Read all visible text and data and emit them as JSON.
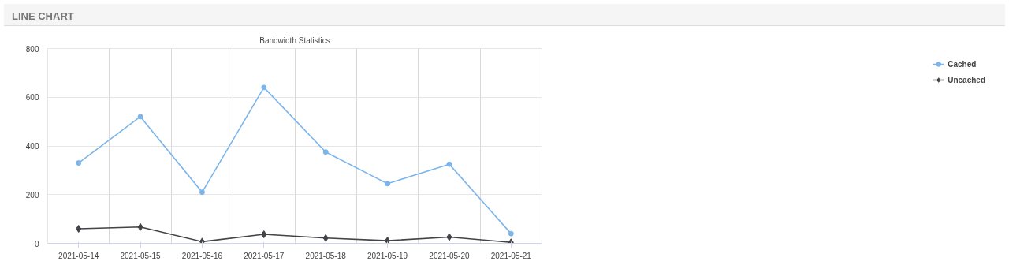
{
  "chart_data": {
    "type": "line",
    "title": "Bandwidth Statistics",
    "annotations": [
      "LINE CHART"
    ],
    "categories": [
      "2021-05-14",
      "2021-05-15",
      "2021-05-16",
      "2021-05-17",
      "2021-05-18",
      "2021-05-19",
      "2021-05-20",
      "2021-05-21"
    ],
    "series": [
      {
        "name": "Cached",
        "color": "#7cb5ec",
        "marker": "circle",
        "values": [
          330,
          520,
          210,
          640,
          375,
          245,
          325,
          40
        ]
      },
      {
        "name": "Uncached",
        "color": "#434348",
        "marker": "diamond",
        "values": [
          60,
          67,
          7,
          37,
          22,
          11,
          26,
          4
        ]
      }
    ],
    "ylim": [
      0,
      800
    ],
    "yticks": [
      0,
      200,
      400,
      600,
      800
    ],
    "grid": true,
    "legend": "right",
    "line_style": "solid"
  }
}
